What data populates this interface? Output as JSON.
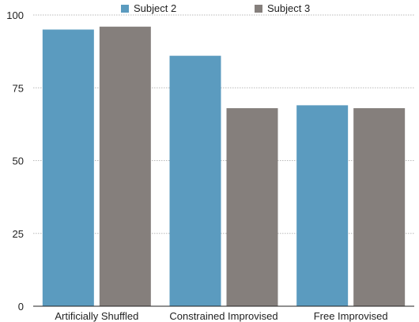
{
  "chart_data": {
    "type": "bar",
    "title": "",
    "xlabel": "",
    "ylabel": "",
    "categories": [
      "Artificially Shuffled",
      "Constrained Improvised",
      "Free Improvised"
    ],
    "series": [
      {
        "name": "Subject 2",
        "color": "#5b9bbf",
        "values": [
          95,
          86,
          69
        ]
      },
      {
        "name": "Subject 3",
        "color": "#857f7c",
        "values": [
          96,
          68,
          68
        ]
      }
    ],
    "ylim": [
      0,
      100
    ],
    "yticks": [
      "0",
      "25",
      "50",
      "75",
      "100"
    ],
    "grid": true,
    "legend_position": "top"
  }
}
